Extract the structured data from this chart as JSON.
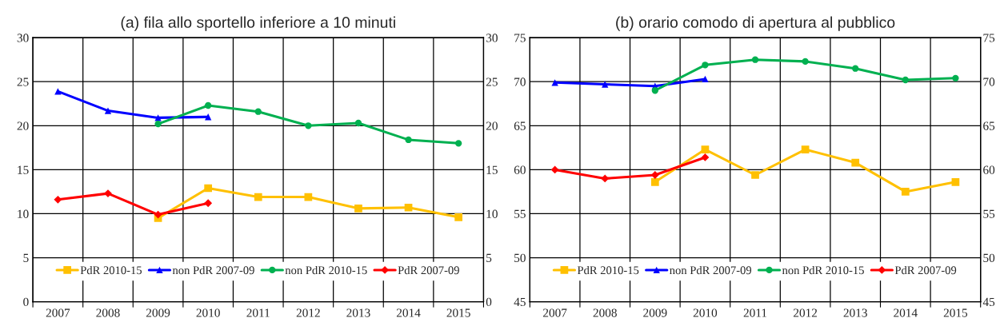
{
  "chart_data": [
    {
      "type": "line",
      "title": "(a) fila allo sportello inferiore a 10 minuti",
      "categories": [
        "2007",
        "2008",
        "2009",
        "2010",
        "2011",
        "2012",
        "2013",
        "2014",
        "2015"
      ],
      "series": [
        {
          "name": "PdR 2010-15",
          "color": "#ffc000",
          "marker": "square",
          "values": [
            null,
            null,
            9.5,
            12.9,
            11.9,
            11.9,
            10.6,
            10.7,
            9.6
          ]
        },
        {
          "name": "non PdR 2007-09",
          "color": "#0000ff",
          "marker": "triangle",
          "values": [
            23.9,
            21.7,
            20.9,
            21.0,
            null,
            null,
            null,
            null,
            null
          ]
        },
        {
          "name": "non PdR 2010-15",
          "color": "#00b050",
          "marker": "circle",
          "values": [
            null,
            null,
            20.2,
            22.3,
            21.6,
            20.0,
            20.3,
            18.4,
            18.0
          ]
        },
        {
          "name": "PdR 2007-09",
          "color": "#ff0000",
          "marker": "diamond",
          "values": [
            11.6,
            12.3,
            9.9,
            11.2,
            null,
            null,
            null,
            null,
            null
          ]
        }
      ],
      "ylim": [
        0,
        30
      ],
      "yticks": [
        0,
        5,
        10,
        15,
        20,
        25,
        30
      ],
      "y2lim": [
        0,
        30
      ],
      "y2ticks": [
        0,
        5,
        10,
        15,
        20,
        25,
        30
      ],
      "grid": true,
      "legend": "bottom",
      "line_style": "solid"
    },
    {
      "type": "line",
      "title": "(b) orario comodo di apertura al pubblico",
      "categories": [
        "2007",
        "2008",
        "2009",
        "2010",
        "2011",
        "2012",
        "2013",
        "2014",
        "2015"
      ],
      "series": [
        {
          "name": "PdR 2010-15",
          "color": "#ffc000",
          "marker": "square",
          "values": [
            null,
            null,
            58.6,
            62.3,
            59.4,
            62.3,
            60.8,
            57.5,
            58.6
          ]
        },
        {
          "name": "non PdR 2007-09",
          "color": "#0000ff",
          "marker": "triangle",
          "values": [
            69.9,
            69.7,
            69.5,
            70.3,
            null,
            null,
            null,
            null,
            null
          ]
        },
        {
          "name": "non PdR 2010-15",
          "color": "#00b050",
          "marker": "circle",
          "values": [
            null,
            null,
            69.0,
            71.9,
            72.5,
            72.3,
            71.5,
            70.2,
            70.4
          ]
        },
        {
          "name": "PdR 2007-09",
          "color": "#ff0000",
          "marker": "diamond",
          "values": [
            60.0,
            59.0,
            59.4,
            61.4,
            null,
            null,
            null,
            null,
            null
          ]
        }
      ],
      "ylim": [
        45,
        75
      ],
      "yticks": [
        45,
        50,
        55,
        60,
        65,
        70,
        75
      ],
      "y2lim": [
        45,
        75
      ],
      "y2ticks": [
        45,
        50,
        55,
        60,
        65,
        70,
        75
      ],
      "grid": true,
      "legend": "bottom",
      "line_style": "solid"
    }
  ]
}
